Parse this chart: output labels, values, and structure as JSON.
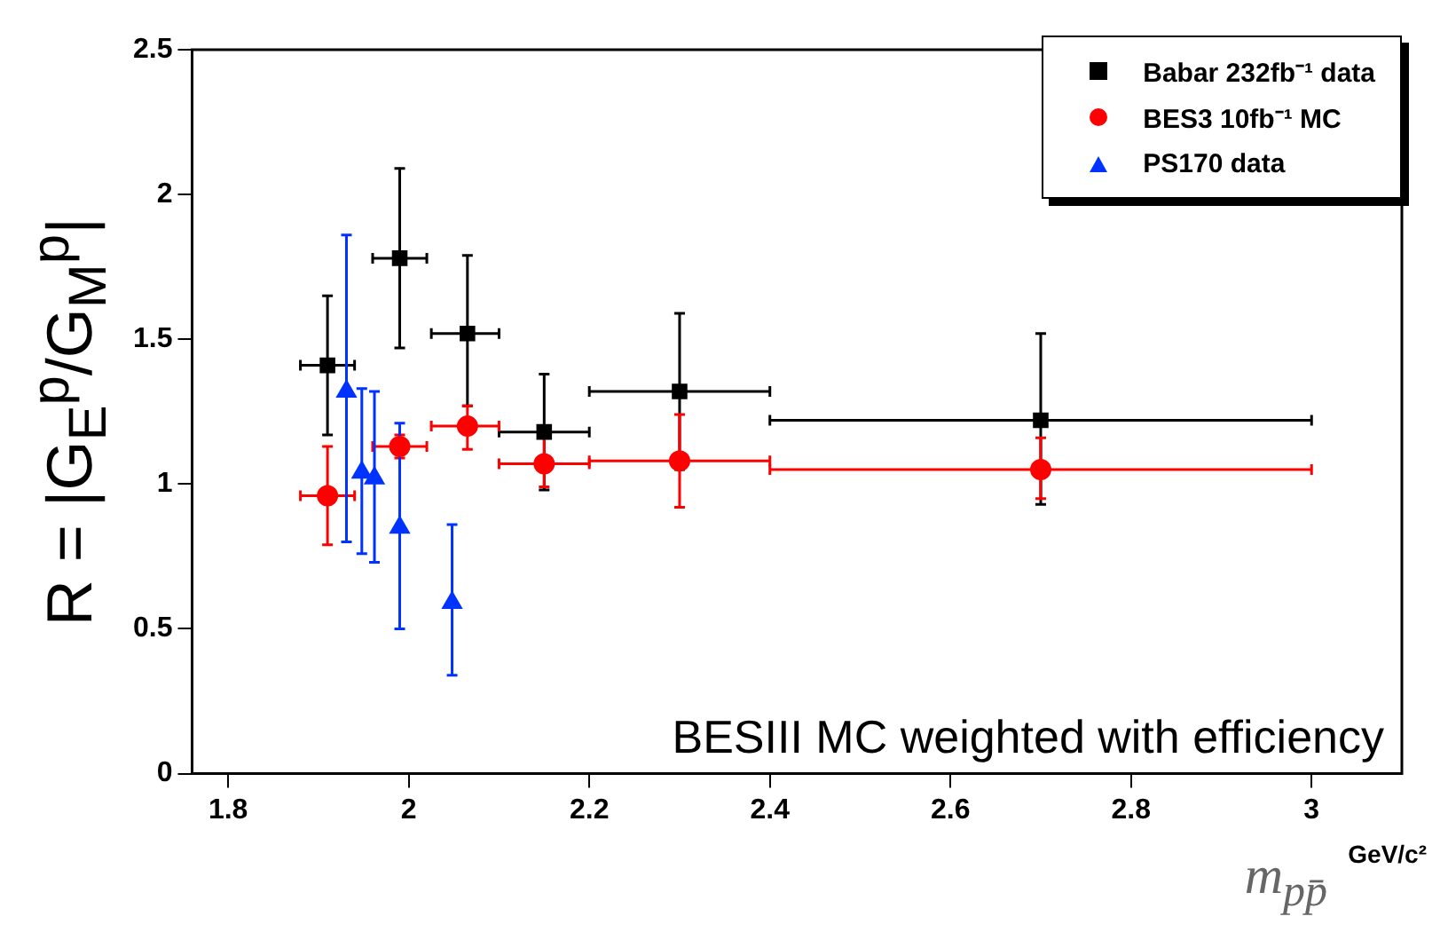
{
  "chart_data": {
    "type": "scatter",
    "xlabel": "m$_{pp̄}$",
    "ylabel": "R = |G$_{E}$$^{p}$/G$_{M}$$^{p}$|",
    "annotations": [
      "BESIII MC weighted with efficiency",
      "GeV/c²"
    ],
    "xlim": [
      1.76,
      3.1
    ],
    "xticks": [
      1.8,
      2,
      2.2,
      2.4,
      2.6,
      2.8,
      3
    ],
    "ylim": [
      0,
      2.5
    ],
    "yticks": [
      0,
      0.5,
      1,
      1.5,
      2,
      2.5
    ],
    "grid": false,
    "legend": "top right",
    "series": [
      {
        "name": "Babar 232fb⁻¹ data",
        "color": "#000000",
        "marker": "square",
        "x": [
          1.91,
          1.99,
          2.065,
          2.15,
          2.3,
          2.7
        ],
        "values": [
          1.41,
          1.78,
          1.52,
          1.18,
          1.32,
          1.22
        ],
        "errors": [
          [
            1.17,
            1.65
          ],
          [
            1.47,
            2.09
          ],
          [
            1.27,
            1.79
          ],
          [
            0.98,
            1.38
          ],
          [
            1.05,
            1.59
          ],
          [
            0.93,
            1.52
          ]
        ],
        "xerrors": [
          [
            1.88,
            1.94
          ],
          [
            1.96,
            2.02
          ],
          [
            2.025,
            2.1
          ],
          [
            2.1,
            2.2
          ],
          [
            2.2,
            2.4
          ],
          [
            2.4,
            3
          ]
        ]
      },
      {
        "name": "BES3 10fb⁻¹ MC",
        "color": "#ff0000",
        "marker": "circle",
        "x": [
          1.91,
          1.99,
          2.065,
          2.15,
          2.3,
          2.7
        ],
        "values": [
          0.96,
          1.13,
          1.2,
          1.07,
          1.08,
          1.05
        ],
        "errors": [
          [
            0.79,
            1.13
          ],
          [
            1.09,
            1.17
          ],
          [
            1.12,
            1.27
          ],
          [
            0.99,
            1.16
          ],
          [
            0.92,
            1.24
          ],
          [
            0.95,
            1.16
          ]
        ],
        "xerrors": [
          [
            1.88,
            1.94
          ],
          [
            1.96,
            2.02
          ],
          [
            2.025,
            2.1
          ],
          [
            2.1,
            2.2
          ],
          [
            2.2,
            2.4
          ],
          [
            2.4,
            3
          ]
        ]
      },
      {
        "name": "PS170 data",
        "color": "#0033ff",
        "marker": "triangle",
        "x": [
          1.931,
          1.948,
          1.962,
          1.99,
          2.048
        ],
        "values": [
          1.32,
          1.04,
          1.02,
          0.85,
          0.59
        ],
        "errors": [
          [
            0.8,
            1.86
          ],
          [
            0.76,
            1.33
          ],
          [
            0.73,
            1.32
          ],
          [
            0.5,
            1.21
          ],
          [
            0.34,
            0.86
          ]
        ]
      }
    ]
  }
}
